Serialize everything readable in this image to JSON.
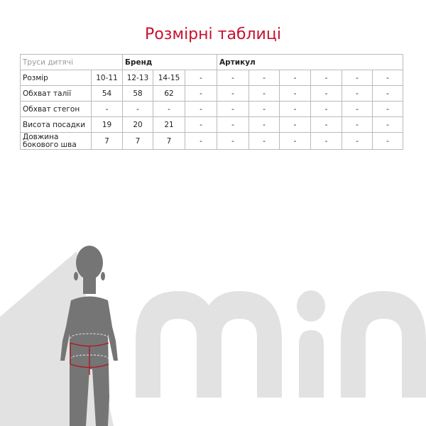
{
  "title": "Розмірні таблиці",
  "header": {
    "product": "Труси дитячі",
    "brand": "Бренд",
    "article": "Артикул"
  },
  "rows": [
    {
      "label": "Розмір",
      "values": [
        "10-11",
        "12-13",
        "14-15",
        "-",
        "-",
        "-",
        "-",
        "-",
        "-",
        "-"
      ]
    },
    {
      "label": "Обхват талії",
      "values": [
        "54",
        "58",
        "62",
        "-",
        "-",
        "-",
        "-",
        "-",
        "-",
        "-"
      ]
    },
    {
      "label": "Обхват стегон",
      "values": [
        "-",
        "-",
        "-",
        "-",
        "-",
        "-",
        "-",
        "-",
        "-",
        "-"
      ]
    },
    {
      "label": "Висота посадки",
      "values": [
        "19",
        "20",
        "21",
        "-",
        "-",
        "-",
        "-",
        "-",
        "-",
        "-"
      ]
    },
    {
      "label": "Довжина бокового шва",
      "values": [
        "7",
        "7",
        "7",
        "-",
        "-",
        "-",
        "-",
        "-",
        "-",
        "-"
      ]
    }
  ],
  "colors": {
    "title": "#c8102e",
    "figure": "#757575",
    "logo": "#e2e2e2",
    "measure": "#b0151f"
  },
  "logo_text": "min"
}
